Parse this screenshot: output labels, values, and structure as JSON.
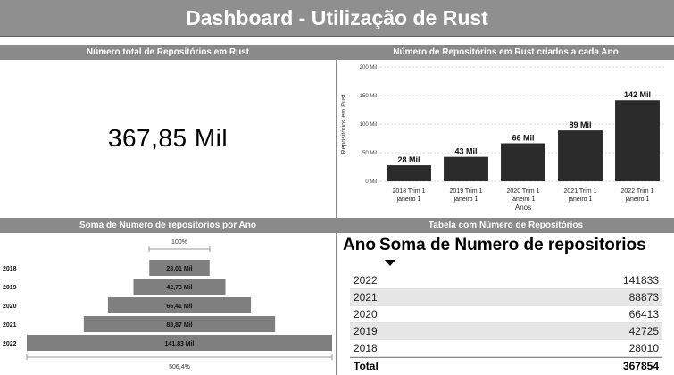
{
  "header": {
    "title": "Dashboard - Utilização de Rust"
  },
  "kpi_panel": {
    "title": "Número total de Repositórios em Rust",
    "value": "367,85 Mil"
  },
  "bar_panel": {
    "title": "Número de Repositórios em Rust criados a cada Ano"
  },
  "funnel_panel": {
    "title": "Soma de Numero de repositorios por Ano",
    "top_label": "100%",
    "bottom_label": "506,4%"
  },
  "table_panel": {
    "title": "Tabela com Número de Repositórios",
    "columns": [
      "Ano",
      "Soma de Numero de repositorios"
    ],
    "rows": [
      [
        "2022",
        "141833"
      ],
      [
        "2021",
        "88873"
      ],
      [
        "2020",
        "66413"
      ],
      [
        "2019",
        "42725"
      ],
      [
        "2018",
        "28010"
      ]
    ],
    "total": [
      "Total",
      "367854"
    ]
  },
  "chart_data": [
    {
      "type": "bar",
      "title": "Número de Repositórios em Rust criados a cada Ano",
      "xlabel": "Anos",
      "ylabel": "Repositórios em Rust",
      "categories": [
        [
          "2018 Trim 1",
          "janeiro 1"
        ],
        [
          "2019 Trim 1",
          "janeiro 1"
        ],
        [
          "2020 Trim 1",
          "janeiro 1"
        ],
        [
          "2021 Trim 1",
          "janeiro 1"
        ],
        [
          "2022 Trim 1",
          "janeiro 1"
        ]
      ],
      "values": [
        28010,
        42725,
        66413,
        88873,
        141833
      ],
      "data_labels": [
        "28 Mil",
        "43 Mil",
        "66 Mil",
        "89 Mil",
        "142 Mil"
      ],
      "yticks": [
        0,
        50000,
        100000,
        150000,
        200000
      ],
      "ytick_labels": [
        "0 Mil",
        "50 Mil",
        "100 Mil",
        "150 Mil",
        "200 Mil"
      ],
      "ylim": [
        0,
        200000
      ],
      "grid": true,
      "color": "#2b2b2b"
    },
    {
      "type": "bar",
      "orientation": "funnel",
      "title": "Soma de Numero de repositorios por Ano",
      "categories": [
        "2018",
        "2019",
        "2020",
        "2021",
        "2022"
      ],
      "values": [
        28010,
        42725,
        66413,
        88873,
        141833
      ],
      "data_labels": [
        "28,01 Mil",
        "42,73 Mil",
        "66,41 Mil",
        "88,87 Mil",
        "141,83 Mil"
      ],
      "color": "#7f7f7f"
    }
  ]
}
